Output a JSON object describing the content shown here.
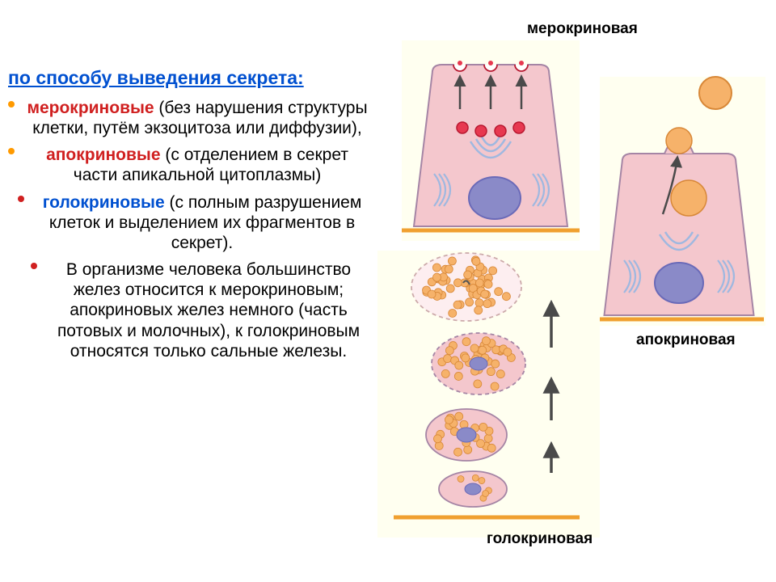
{
  "heading": "по способу выведения секрета:",
  "items": [
    {
      "kw": "мерокриновые",
      "rest": " (без нарушения структуры клетки, путём экзоцитоза или диффузии),",
      "kw_color": "#d02020",
      "bullet_color": "#ff9a00"
    },
    {
      "kw": "апокриновые",
      "rest": " (с отделением в секрет части апикальной цитоплазмы)",
      "kw_color": "#d02020",
      "bullet_color": "#ff9a00"
    },
    {
      "kw": "голокриновые",
      "rest": " (с полным разрушением клеток и выделением их фрагментов в секрет).",
      "kw_color": "#0050d0",
      "bullet_color": "#d02020"
    },
    {
      "kw": "",
      "rest": "В организме человека большинство желез относится к мерокриновым; апокриновых желез немного (часть потовых и молочных), к голокриновым относятся только сальные железы.",
      "kw_color": "#000000",
      "bullet_color": "#d02020"
    }
  ],
  "labels": {
    "merocrine": "мерокриновая",
    "apocrine": "апокриновая",
    "holocrine": "голокриновая"
  },
  "colors": {
    "cell_fill": "#f4c7cd",
    "cell_stroke": "#a585a5",
    "nucleus_fill": "#8a8ac8",
    "nucleus_stroke": "#6a6ab8",
    "vesicle_red_fill": "#e73850",
    "vesicle_red_stroke": "#b81830",
    "vesicle_orange_fill": "#f6b26a",
    "vesicle_orange_stroke": "#d88838",
    "er_stroke": "#9fb8e0",
    "baseline": "#f0a030",
    "arrow": "#4a4a4a",
    "panel_bg": "#fffff0"
  }
}
